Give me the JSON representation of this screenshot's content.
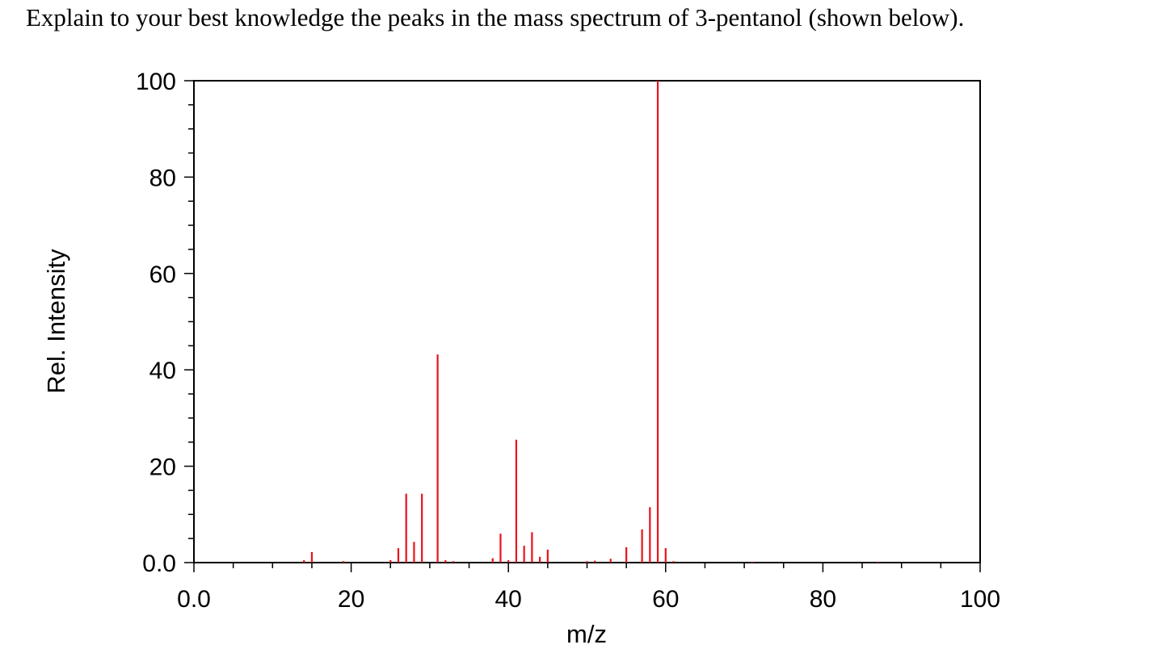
{
  "question": "Explain to your best knowledge the peaks in the mass spectrum of 3-pentanol (shown below).",
  "chart_data": {
    "type": "bar",
    "title": "",
    "xlabel": "m/z",
    "ylabel": "Rel. Intensity",
    "xlim": [
      0,
      100
    ],
    "ylim": [
      0,
      100
    ],
    "grid": false,
    "bar_color": "#e8131a",
    "x_ticks": [
      "0.0",
      "20",
      "40",
      "60",
      "80",
      "100"
    ],
    "y_ticks": [
      "0.0",
      "20",
      "40",
      "60",
      "80",
      "100"
    ],
    "peaks": [
      {
        "mz": 14,
        "intensity": 0.5
      },
      {
        "mz": 15,
        "intensity": 2.2
      },
      {
        "mz": 19,
        "intensity": 0.3
      },
      {
        "mz": 25,
        "intensity": 0.5
      },
      {
        "mz": 26,
        "intensity": 3.0
      },
      {
        "mz": 27,
        "intensity": 14.3
      },
      {
        "mz": 28,
        "intensity": 4.3
      },
      {
        "mz": 29,
        "intensity": 14.3
      },
      {
        "mz": 31,
        "intensity": 43.2
      },
      {
        "mz": 32,
        "intensity": 0.5
      },
      {
        "mz": 33,
        "intensity": 0.3
      },
      {
        "mz": 38,
        "intensity": 0.9
      },
      {
        "mz": 39,
        "intensity": 6.0
      },
      {
        "mz": 40,
        "intensity": 0.5
      },
      {
        "mz": 41,
        "intensity": 25.5
      },
      {
        "mz": 42,
        "intensity": 3.5
      },
      {
        "mz": 43,
        "intensity": 6.3
      },
      {
        "mz": 44,
        "intensity": 1.2
      },
      {
        "mz": 45,
        "intensity": 2.7
      },
      {
        "mz": 50,
        "intensity": 0.3
      },
      {
        "mz": 51,
        "intensity": 0.4
      },
      {
        "mz": 53,
        "intensity": 0.8
      },
      {
        "mz": 55,
        "intensity": 3.2
      },
      {
        "mz": 57,
        "intensity": 6.9
      },
      {
        "mz": 58,
        "intensity": 11.5
      },
      {
        "mz": 59,
        "intensity": 100
      },
      {
        "mz": 60,
        "intensity": 3.0
      },
      {
        "mz": 61,
        "intensity": 0.3
      },
      {
        "mz": 71,
        "intensity": 0.2
      },
      {
        "mz": 87,
        "intensity": 0.2
      }
    ]
  }
}
